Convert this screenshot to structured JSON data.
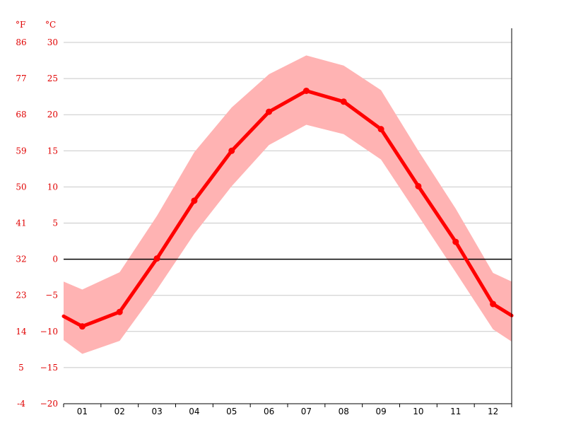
{
  "chart_data": {
    "type": "line",
    "categories": [
      "01",
      "02",
      "03",
      "04",
      "05",
      "06",
      "07",
      "08",
      "09",
      "10",
      "11",
      "12"
    ],
    "units": {
      "fahrenheit": "°F",
      "celsius": "°C"
    },
    "ylim": [
      -20,
      30
    ],
    "y_ticks_c": [
      "30",
      "25",
      "20",
      "15",
      "10",
      "5",
      "0",
      "−5",
      "−10",
      "−15",
      "−20"
    ],
    "y_ticks_f": [
      "86",
      "77",
      "68",
      "59",
      "50",
      "41",
      "32",
      "23",
      "14",
      "5",
      "-4"
    ],
    "y_tick_values": [
      30,
      25,
      20,
      15,
      10,
      5,
      0,
      -5,
      -10,
      -15,
      -20
    ],
    "grid": true,
    "series": [
      {
        "values": [
          -9.3,
          -7.3,
          0.1,
          8.1,
          15.0,
          20.4,
          23.3,
          21.8,
          18.0,
          10.1,
          2.4,
          -6.2
        ],
        "edge_values": [
          -7.9,
          -7.8
        ]
      }
    ],
    "band": {
      "upper": [
        -4.2,
        -1.8,
        6.0,
        14.8,
        21.0,
        25.6,
        28.2,
        26.8,
        23.4,
        15.0,
        7.0,
        -1.9
      ],
      "lower": [
        -13.1,
        -11.3,
        -4.2,
        3.5,
        10.1,
        15.8,
        18.6,
        17.3,
        13.8,
        6.0,
        -1.8,
        -9.7
      ],
      "edge_upper": [
        -3.1,
        -3.1
      ],
      "edge_lower": [
        -11.2,
        -11.4
      ]
    },
    "colors": {
      "line": "#ff0000",
      "band": "#ffb3b3",
      "tick_text": "#e00000"
    }
  }
}
